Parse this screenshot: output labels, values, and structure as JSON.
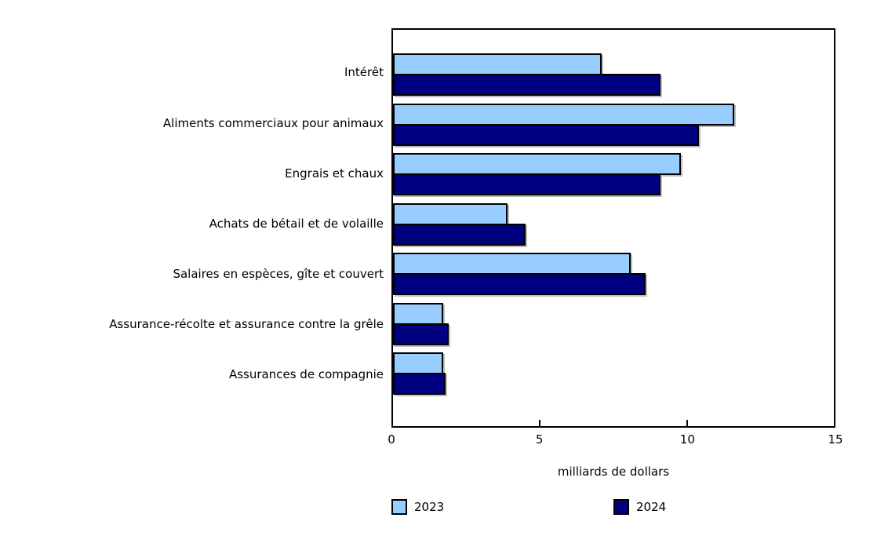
{
  "chart_data": {
    "type": "bar",
    "orientation": "horizontal",
    "categories": [
      "Intérêt",
      "Aliments commerciaux pour animaux",
      "Engrais et chaux",
      "Achats de bétail et de volaille",
      "Salaires en espèces, gîte et couvert",
      "Assurance-récolte et assurance contre la grêle",
      "Assurances de compagnie"
    ],
    "series": [
      {
        "name": "2023",
        "color": "#99CCFF",
        "values": [
          7.1,
          11.6,
          9.8,
          3.9,
          8.1,
          1.7,
          1.7
        ]
      },
      {
        "name": "2024",
        "color": "#000080",
        "values": [
          9.1,
          10.4,
          9.1,
          4.5,
          8.6,
          1.9,
          1.8
        ]
      }
    ],
    "xlabel": "milliards de dollars",
    "xlim": [
      0,
      15
    ],
    "xticks": [
      0,
      5,
      10,
      15
    ],
    "grid": false,
    "legend_position": "bottom",
    "bar_border_color": "#000000",
    "background_color": "#ffffff"
  }
}
